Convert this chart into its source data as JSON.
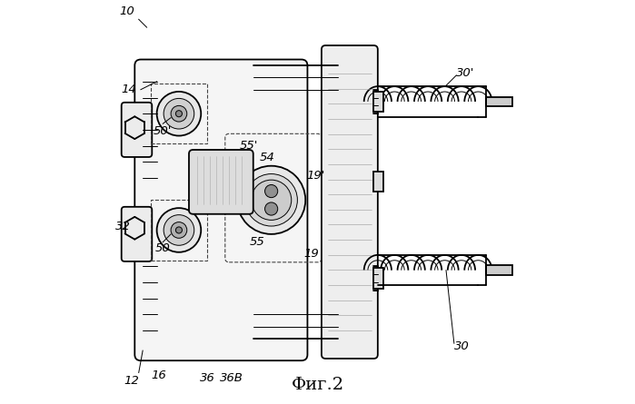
{
  "title": "Фиг.2",
  "title_fontsize": 14,
  "background_color": "#ffffff",
  "line_color": "#000000",
  "fig_width": 6.99,
  "fig_height": 4.45,
  "dpi": 100
}
